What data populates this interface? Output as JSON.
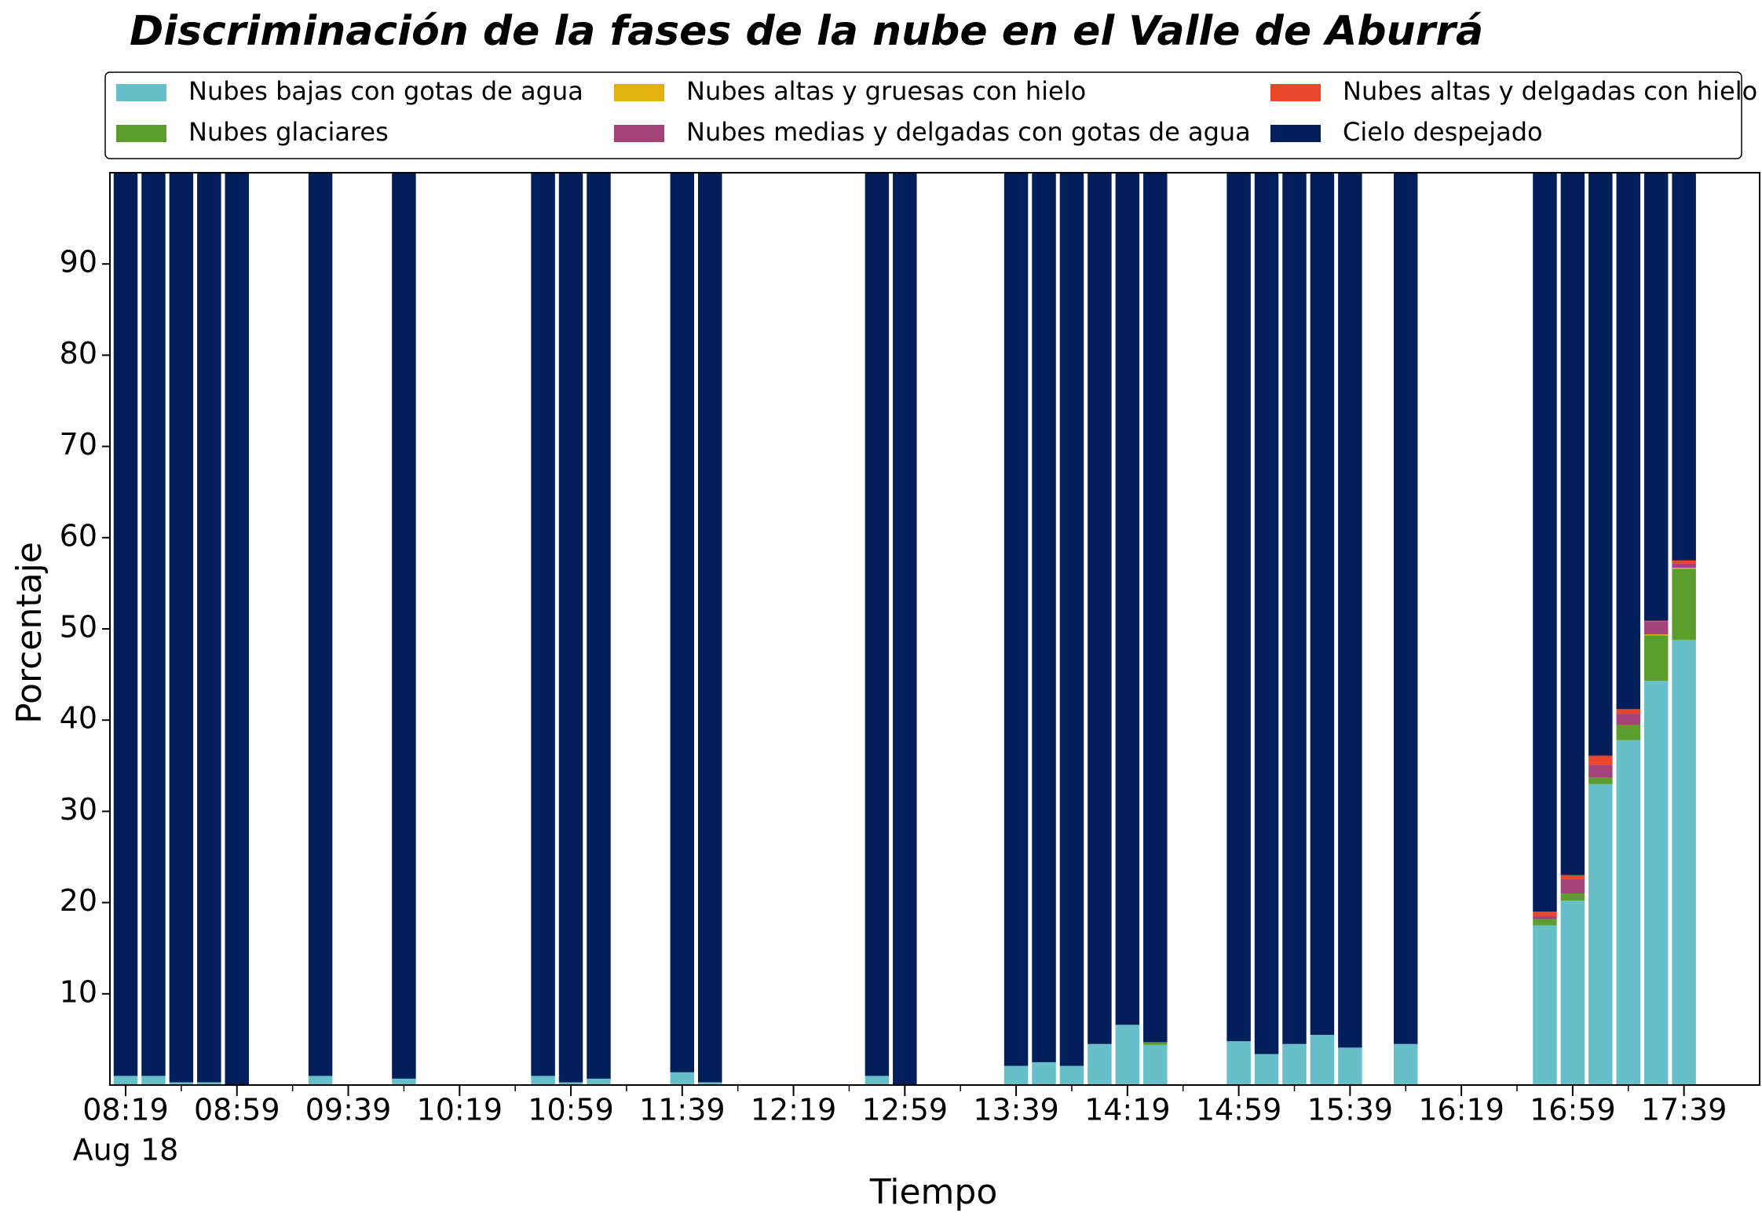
{
  "chart_data": {
    "type": "stacked_bar",
    "title": "Discriminación de la fases de la nube en el Valle de Aburrá",
    "xlabel": "Tiempo",
    "ylabel": "Porcentaje",
    "date_label": "Aug 18",
    "categories": [
      "08:19",
      null,
      null,
      null,
      "08:59",
      null,
      null,
      null,
      "09:39",
      null,
      null,
      null,
      "10:19",
      null,
      null,
      null,
      "10:59",
      null,
      null,
      null,
      "11:39",
      null,
      null,
      null,
      "12:19",
      null,
      null,
      null,
      "12:59",
      null,
      null,
      null,
      "13:39",
      null,
      null,
      null,
      "14:19",
      null,
      null,
      null,
      "14:59",
      null,
      null,
      null,
      "15:39",
      null,
      null,
      null,
      "16:19",
      null,
      null,
      null,
      "16:59",
      null,
      null,
      null,
      "17:39",
      null
    ],
    "ylim": [
      0,
      100
    ],
    "yticks": [
      10,
      20,
      30,
      40,
      50,
      60,
      70,
      80,
      90
    ],
    "legend": "top",
    "series": [
      {
        "name": "Nubes bajas con gotas de agua",
        "color": "#67bfca",
        "values": [
          1,
          1,
          0.3,
          0.3,
          0,
          null,
          null,
          1,
          null,
          null,
          0.7,
          null,
          null,
          null,
          null,
          1,
          0.3,
          0.7,
          null,
          null,
          1.4,
          0.3,
          null,
          null,
          null,
          null,
          null,
          1,
          0,
          null,
          null,
          null,
          2.1,
          2.5,
          2.1,
          4.5,
          6.6,
          4.4,
          null,
          null,
          4.8,
          3.4,
          4.5,
          5.5,
          4.1,
          null,
          4.5,
          null,
          null,
          null,
          null,
          17.5,
          20.2,
          33,
          37.8,
          44.3,
          48.8,
          null
        ]
      },
      {
        "name": "Nubes glaciares",
        "color": "#5c9e2d",
        "values": [
          0,
          0,
          0,
          0,
          0,
          null,
          null,
          0,
          null,
          null,
          0,
          null,
          null,
          null,
          null,
          0,
          0,
          0,
          null,
          null,
          0,
          0,
          null,
          null,
          null,
          null,
          null,
          0,
          0,
          null,
          null,
          null,
          0,
          0,
          0,
          0,
          0,
          0.3,
          null,
          null,
          0,
          0,
          0,
          0,
          0,
          null,
          0,
          null,
          null,
          null,
          null,
          0.7,
          0.8,
          0.7,
          1.7,
          5,
          7.8,
          null
        ]
      },
      {
        "name": "Nubes altas y gruesas con hielo",
        "color": "#e0b10f",
        "values": [
          0,
          0,
          0,
          0,
          0,
          null,
          null,
          0,
          null,
          null,
          0,
          null,
          null,
          null,
          null,
          0,
          0,
          0,
          null,
          null,
          0,
          0,
          null,
          null,
          null,
          null,
          null,
          0,
          0,
          null,
          null,
          null,
          0,
          0,
          0,
          0,
          0,
          0,
          null,
          null,
          0,
          0,
          0,
          0,
          0,
          null,
          0,
          null,
          null,
          null,
          null,
          0,
          0,
          0,
          0,
          0.1,
          0.1,
          null
        ]
      },
      {
        "name": "Nubes medias y delgadas con gotas de agua",
        "color": "#a4437a",
        "values": [
          0,
          0,
          0,
          0,
          0,
          null,
          null,
          0,
          null,
          null,
          0,
          null,
          null,
          null,
          null,
          0,
          0,
          0,
          null,
          null,
          0,
          0,
          null,
          null,
          null,
          null,
          null,
          0,
          0,
          null,
          null,
          null,
          0,
          0,
          0,
          0,
          0,
          0,
          null,
          null,
          0,
          0,
          0,
          0,
          0,
          null,
          0,
          null,
          null,
          null,
          null,
          0.3,
          1.6,
          1.4,
          1.2,
          1.4,
          0.4,
          null
        ]
      },
      {
        "name": "Nubes altas y delgadas con hielo",
        "color": "#e8472b",
        "values": [
          0,
          0,
          0,
          0,
          0,
          null,
          null,
          0,
          null,
          null,
          0,
          null,
          null,
          null,
          null,
          0,
          0,
          0,
          null,
          null,
          0,
          0,
          null,
          null,
          null,
          null,
          null,
          0,
          0,
          null,
          null,
          null,
          0,
          0,
          0,
          0,
          0,
          0,
          null,
          null,
          0,
          0,
          0,
          0,
          0,
          null,
          0,
          null,
          null,
          null,
          null,
          0.5,
          0.4,
          1,
          0.5,
          0.1,
          0.4,
          null
        ]
      },
      {
        "name": "Cielo despejado",
        "color": "#021f5c",
        "values": [
          99,
          99,
          99.7,
          99.7,
          100,
          null,
          null,
          99,
          null,
          null,
          99.3,
          null,
          null,
          null,
          null,
          99,
          99.7,
          99.3,
          null,
          null,
          98.6,
          99.7,
          null,
          null,
          null,
          null,
          null,
          99,
          100,
          null,
          null,
          null,
          97.9,
          97.5,
          97.9,
          95.5,
          93.4,
          95.3,
          null,
          null,
          95.2,
          96.6,
          95.5,
          94.5,
          95.9,
          null,
          95.5,
          null,
          null,
          null,
          null,
          81,
          77,
          63.9,
          58.8,
          49.1,
          42.5,
          null
        ]
      }
    ]
  }
}
